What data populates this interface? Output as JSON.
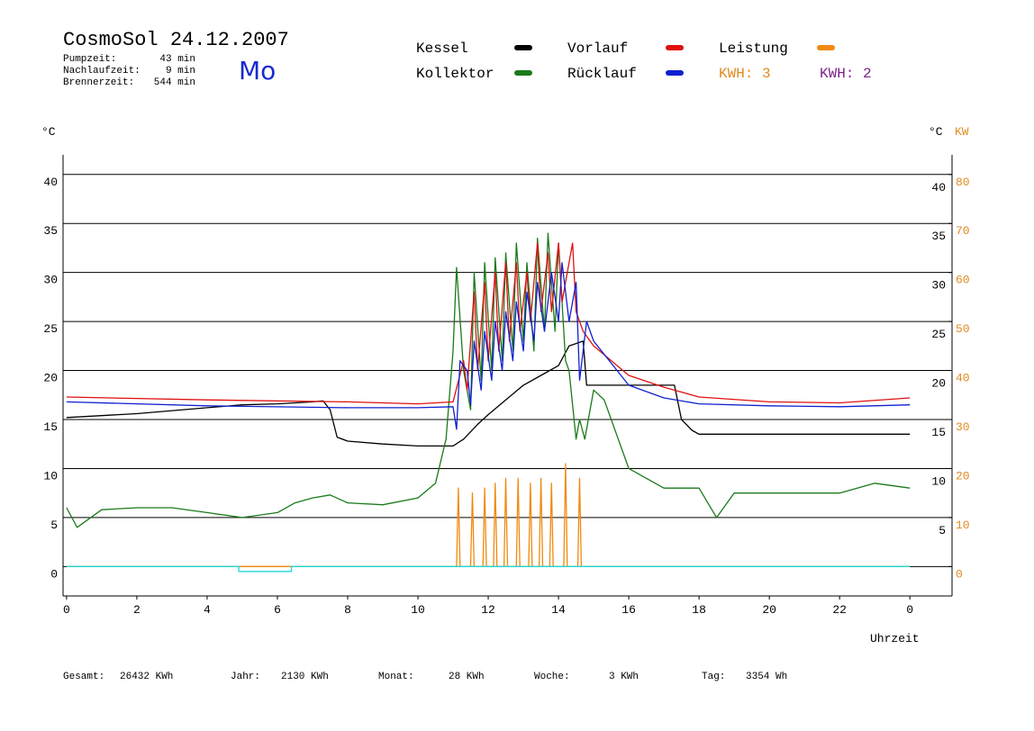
{
  "header": {
    "title": "CosmoSol 24.12.2007",
    "weekday": "Mo",
    "stats": [
      {
        "label": "Pumpzeit:",
        "value": "43 min"
      },
      {
        "label": "Nachlaufzeit:",
        "value": "9 min"
      },
      {
        "label": "Brennerzeit:",
        "value": "544 min"
      }
    ],
    "kwh": [
      {
        "label": "KWH: 3",
        "color": "#e08a1e"
      },
      {
        "label": "KWH: 2",
        "color": "#80208a"
      }
    ]
  },
  "footer": [
    {
      "label": "Gesamt:",
      "value": "26432 KWh"
    },
    {
      "label": "Jahr:",
      "value": "2130 KWh"
    },
    {
      "label": "Monat:",
      "value": "28 KWh"
    },
    {
      "label": "Woche:",
      "value": "3 KWh"
    },
    {
      "label": "Tag:",
      "value": "3354 Wh"
    }
  ],
  "chart_data": {
    "type": "line",
    "ylabel": "°C",
    "y2label": "°C",
    "y2unit": "KW",
    "xlabel": "Uhrzeit",
    "xlim": [
      -0.1,
      25.2
    ],
    "xticks": [
      0,
      2,
      4,
      6,
      8,
      10,
      12,
      14,
      16,
      18,
      20,
      22,
      {
        "value": 24,
        "label": "0"
      }
    ],
    "ylim": [
      -3,
      42
    ],
    "yticks": [
      0,
      5,
      10,
      15,
      20,
      25,
      30,
      35,
      40
    ],
    "yticks_right": [
      5,
      10,
      15,
      20,
      25,
      30,
      35,
      40
    ],
    "y2lim": [
      -6,
      84
    ],
    "y2ticks": [
      0,
      10,
      20,
      30,
      40,
      50,
      60,
      70,
      80
    ],
    "y2color": "#e08a1e",
    "grid": true,
    "series": [
      {
        "name": "Kessel",
        "color": "#000000",
        "x": [
          0,
          2,
          4,
          5,
          6,
          7,
          7.3,
          7.5,
          7.7,
          8,
          9,
          10,
          11,
          11.3,
          11.7,
          12,
          12.5,
          13,
          13.5,
          14,
          14.3,
          14.7,
          14.8,
          15,
          16,
          17,
          17.3,
          17.5,
          17.8,
          18,
          20,
          22,
          24
        ],
        "values": [
          15.2,
          15.6,
          16.2,
          16.5,
          16.6,
          16.8,
          16.9,
          16.0,
          13.2,
          12.8,
          12.5,
          12.3,
          12.3,
          13,
          14.5,
          15.5,
          17,
          18.5,
          19.5,
          20.5,
          22.5,
          23,
          18.5,
          18.5,
          18.5,
          18.5,
          18.5,
          15,
          13.9,
          13.5,
          13.5,
          13.5,
          13.5
        ]
      },
      {
        "name": "Kollektor",
        "color": "#1a7a1a",
        "x": [
          0,
          0.3,
          1,
          2,
          3,
          4,
          5,
          6,
          6.5,
          7,
          7.5,
          8,
          9,
          10,
          10.5,
          10.8,
          11,
          11.1,
          11.3,
          11.5,
          11.6,
          11.8,
          11.9,
          12.1,
          12.2,
          12.4,
          12.5,
          12.7,
          12.8,
          13,
          13.1,
          13.3,
          13.4,
          13.6,
          13.7,
          13.9,
          14,
          14.2,
          14.3,
          14.5,
          14.6,
          14.75,
          15,
          15.3,
          16,
          17,
          18,
          18.5,
          19,
          20,
          21,
          22,
          23,
          24
        ],
        "values": [
          6,
          4,
          5.8,
          6,
          6,
          5.5,
          5,
          5.5,
          6.5,
          7,
          7.3,
          6.5,
          6.3,
          7,
          8.5,
          13,
          22,
          30.5,
          20,
          16,
          30,
          19,
          31,
          20,
          31.5,
          21,
          32,
          22,
          33,
          23,
          31,
          22,
          33.5,
          24,
          34,
          24,
          33,
          21,
          20,
          13,
          15,
          13,
          18,
          17,
          10,
          8,
          8,
          5,
          7.5,
          7.5,
          7.5,
          7.5,
          8.5,
          8
        ]
      },
      {
        "name": "Vorlauf",
        "color": "#e01010",
        "x": [
          0,
          4,
          8,
          10,
          11,
          11.3,
          11.4,
          11.6,
          11.7,
          11.9,
          12,
          12.2,
          12.3,
          12.5,
          12.6,
          12.8,
          12.9,
          13.1,
          13.2,
          13.4,
          13.5,
          13.7,
          13.8,
          14,
          14.1,
          14.4,
          14.5,
          14.7,
          15,
          16,
          17,
          18,
          20,
          22,
          24
        ],
        "values": [
          17.3,
          17,
          16.8,
          16.6,
          16.8,
          21,
          18,
          28,
          20,
          29,
          21,
          30,
          22,
          31,
          23,
          31,
          24,
          30,
          25,
          33,
          26,
          32,
          26,
          33,
          27,
          33,
          26,
          24,
          22.5,
          19.5,
          18.3,
          17.3,
          16.8,
          16.7,
          17.2
        ]
      },
      {
        "name": "Rücklauf",
        "color": "#1020d0",
        "x": [
          0,
          4,
          8,
          10,
          11,
          11.1,
          11.2,
          11.4,
          11.5,
          11.6,
          11.8,
          11.9,
          12.1,
          12.2,
          12.4,
          12.5,
          12.7,
          12.8,
          13,
          13.1,
          13.3,
          13.4,
          13.6,
          13.8,
          14,
          14.1,
          14.3,
          14.5,
          14.6,
          14.8,
          15,
          16,
          17,
          18,
          20,
          22,
          24
        ],
        "values": [
          16.8,
          16.4,
          16.2,
          16.2,
          16.3,
          14,
          21,
          20,
          16.5,
          23,
          18,
          24,
          19,
          25,
          20,
          26,
          21,
          27,
          22,
          28,
          23,
          29,
          24,
          30,
          25,
          31,
          25,
          29,
          19,
          25,
          23,
          18.5,
          17.2,
          16.6,
          16.4,
          16.3,
          16.5
        ]
      },
      {
        "name": "Leistung",
        "color": "#f08a10",
        "axis": "y2",
        "x": [
          0,
          11.1,
          11.15,
          11.2,
          11.5,
          11.55,
          11.6,
          11.85,
          11.9,
          11.95,
          12.15,
          12.2,
          12.25,
          12.45,
          12.5,
          12.55,
          12.8,
          12.85,
          12.9,
          13.15,
          13.2,
          13.25,
          13.45,
          13.5,
          13.55,
          13.75,
          13.8,
          13.85,
          14.15,
          14.2,
          14.25,
          14.55,
          14.6,
          14.65,
          24
        ],
        "values": [
          0,
          0,
          16,
          0,
          0,
          15,
          0,
          0,
          16,
          0,
          0,
          17,
          0,
          0,
          18,
          0,
          0,
          18,
          0,
          0,
          17,
          0,
          0,
          18,
          0,
          0,
          17,
          0,
          0,
          21,
          0,
          0,
          18,
          0,
          0
        ]
      },
      {
        "color": "#20d8d8",
        "x": [
          0,
          4.9,
          4.9,
          6.4,
          6.4,
          24
        ],
        "values": [
          0,
          0,
          -0.5,
          -0.5,
          0,
          0
        ]
      }
    ]
  }
}
